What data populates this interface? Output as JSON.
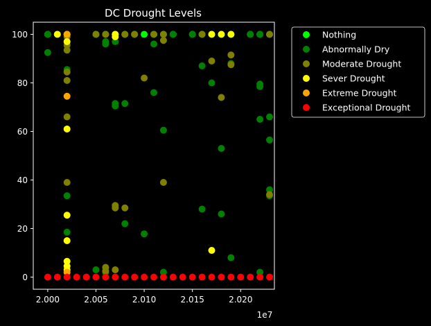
{
  "chart_data": {
    "type": "scatter",
    "title": "DC Drought Levels",
    "xlabel": "",
    "ylabel": "",
    "x_offset_label": "1e7",
    "xlim": [
      19985000,
      20235000
    ],
    "ylim": [
      -5,
      105
    ],
    "x_ticks": [
      20000000,
      20050000,
      20100000,
      20150000,
      20200000
    ],
    "x_tick_labels": [
      "2.000",
      "2.005",
      "2.010",
      "2.015",
      "2.020"
    ],
    "y_ticks": [
      0,
      20,
      40,
      60,
      80,
      100
    ],
    "y_tick_labels": [
      "0",
      "20",
      "40",
      "60",
      "80",
      "100"
    ],
    "legend_position": "outside-right",
    "grid": false,
    "series": [
      {
        "name": "Nothing",
        "color": "#00ff00",
        "points": [
          [
            20000000,
            100
          ],
          [
            20010000,
            100
          ],
          [
            20020000,
            100
          ],
          [
            20050000,
            100
          ],
          [
            20060000,
            100
          ],
          [
            20070000,
            100
          ],
          [
            20080000,
            100
          ],
          [
            20090000,
            100
          ],
          [
            20100000,
            100
          ],
          [
            20110000,
            100
          ],
          [
            20120000,
            100
          ],
          [
            20130000,
            100
          ],
          [
            20150000,
            100
          ],
          [
            20160000,
            100
          ],
          [
            20170000,
            100
          ],
          [
            20180000,
            100
          ],
          [
            20190000,
            100
          ],
          [
            20210000,
            100
          ],
          [
            20220000,
            100
          ],
          [
            20230000,
            100
          ]
        ]
      },
      {
        "name": "Abnormally Dry",
        "color": "#008000",
        "points": [
          [
            20000000,
            100
          ],
          [
            20000000,
            92.5
          ],
          [
            20010000,
            100
          ],
          [
            20020000,
            100
          ],
          [
            20020000,
            85.5
          ],
          [
            20020000,
            33.5
          ],
          [
            20020000,
            18.5
          ],
          [
            20050000,
            100
          ],
          [
            20050000,
            3
          ],
          [
            20060000,
            97
          ],
          [
            20060000,
            96
          ],
          [
            20060000,
            2
          ],
          [
            20070000,
            71.5
          ],
          [
            20070000,
            70.5
          ],
          [
            20070000,
            97
          ],
          [
            20080000,
            71.5
          ],
          [
            20080000,
            22
          ],
          [
            20100000,
            17.8
          ],
          [
            20110000,
            96
          ],
          [
            20110000,
            76
          ],
          [
            20120000,
            60.5
          ],
          [
            20120000,
            2
          ],
          [
            20130000,
            100
          ],
          [
            20150000,
            100
          ],
          [
            20160000,
            87
          ],
          [
            20160000,
            28
          ],
          [
            20170000,
            80
          ],
          [
            20180000,
            53
          ],
          [
            20180000,
            26
          ],
          [
            20190000,
            88
          ],
          [
            20190000,
            8
          ],
          [
            20210000,
            100
          ],
          [
            20220000,
            79.5
          ],
          [
            20220000,
            78.5
          ],
          [
            20220000,
            65
          ],
          [
            20220000,
            100
          ],
          [
            20220000,
            2
          ],
          [
            20230000,
            66
          ],
          [
            20230000,
            56.5
          ],
          [
            20230000,
            36
          ],
          [
            20230000,
            33.5
          ]
        ]
      },
      {
        "name": "Moderate Drought",
        "color": "#808000",
        "points": [
          [
            20020000,
            99
          ],
          [
            20020000,
            95.5
          ],
          [
            20020000,
            93.5
          ],
          [
            20020000,
            84.5
          ],
          [
            20020000,
            81
          ],
          [
            20020000,
            66
          ],
          [
            20020000,
            39
          ],
          [
            20020000,
            2
          ],
          [
            20050000,
            100
          ],
          [
            20060000,
            100
          ],
          [
            20060000,
            4
          ],
          [
            20060000,
            2.5
          ],
          [
            20070000,
            100
          ],
          [
            20070000,
            29.5
          ],
          [
            20070000,
            28.5
          ],
          [
            20070000,
            3
          ],
          [
            20080000,
            100
          ],
          [
            20080000,
            28.5
          ],
          [
            20090000,
            100
          ],
          [
            20100000,
            82
          ],
          [
            20110000,
            100
          ],
          [
            20120000,
            100
          ],
          [
            20120000,
            97.5
          ],
          [
            20120000,
            39
          ],
          [
            20160000,
            100
          ],
          [
            20170000,
            89
          ],
          [
            20180000,
            74
          ],
          [
            20190000,
            91.5
          ],
          [
            20190000,
            87.5
          ],
          [
            20230000,
            100
          ],
          [
            20230000,
            34
          ]
        ]
      },
      {
        "name": "Sever Drought",
        "color": "#ffff00",
        "points": [
          [
            20010000,
            100
          ],
          [
            20020000,
            100
          ],
          [
            20020000,
            97
          ],
          [
            20020000,
            61
          ],
          [
            20020000,
            25.5
          ],
          [
            20020000,
            15
          ],
          [
            20020000,
            6.5
          ],
          [
            20020000,
            4.5
          ],
          [
            20020000,
            3
          ],
          [
            20070000,
            100
          ],
          [
            20070000,
            99
          ],
          [
            20170000,
            100
          ],
          [
            20170000,
            11
          ],
          [
            20180000,
            100
          ],
          [
            20190000,
            100
          ]
        ]
      },
      {
        "name": "Extreme Drought",
        "color": "#ffa500",
        "points": [
          [
            20020000,
            100
          ],
          [
            20020000,
            74.5
          ],
          [
            20020000,
            2
          ]
        ]
      },
      {
        "name": "Exceptional Drought",
        "color": "#ff0000",
        "points": [
          [
            20000000,
            0
          ],
          [
            20010000,
            0
          ],
          [
            20020000,
            0
          ],
          [
            20030000,
            0
          ],
          [
            20040000,
            0
          ],
          [
            20050000,
            0
          ],
          [
            20060000,
            0
          ],
          [
            20070000,
            0
          ],
          [
            20080000,
            0
          ],
          [
            20090000,
            0
          ],
          [
            20100000,
            0
          ],
          [
            20110000,
            0
          ],
          [
            20120000,
            0
          ],
          [
            20130000,
            0
          ],
          [
            20140000,
            0
          ],
          [
            20150000,
            0
          ],
          [
            20160000,
            0
          ],
          [
            20170000,
            0
          ],
          [
            20180000,
            0
          ],
          [
            20190000,
            0
          ],
          [
            20200000,
            0
          ],
          [
            20210000,
            0
          ],
          [
            20220000,
            0
          ],
          [
            20230000,
            0
          ]
        ]
      }
    ]
  }
}
